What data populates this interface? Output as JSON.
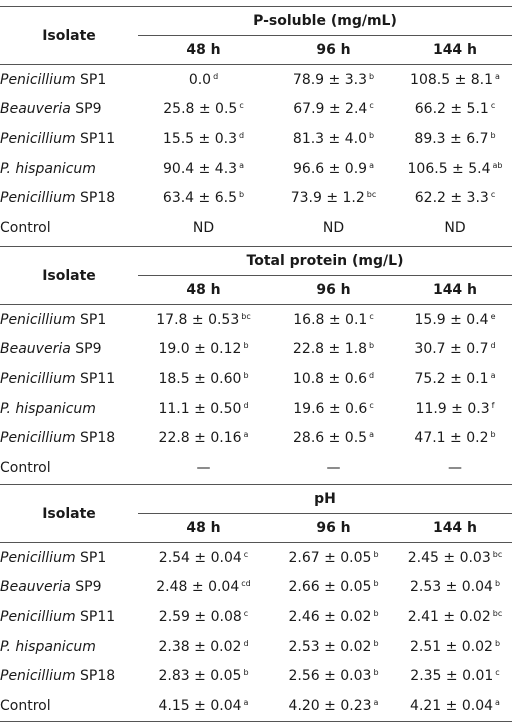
{
  "header_label": "Isolate",
  "time_points": [
    "48 h",
    "96 h",
    "144 h"
  ],
  "sections": [
    {
      "title": "P-soluble (mg/mL)",
      "rows": [
        {
          "genus": "Penicillium",
          "strain": " SP1",
          "cells": [
            {
              "v": "0.0",
              "s": "d"
            },
            {
              "v": "78.9 ± 3.3",
              "s": "b"
            },
            {
              "v": "108.5 ± 8.1",
              "s": "a"
            }
          ]
        },
        {
          "genus": "Beauveria",
          "strain": " SP9",
          "cells": [
            {
              "v": "25.8 ± 0.5",
              "s": "c"
            },
            {
              "v": "67.9 ± 2.4",
              "s": "c"
            },
            {
              "v": "66.2 ± 5.1",
              "s": "c"
            }
          ]
        },
        {
          "genus": "Penicillium",
          "strain": " SP11",
          "cells": [
            {
              "v": "15.5 ± 0.3",
              "s": "d"
            },
            {
              "v": "81.3 ± 4.0",
              "s": "b"
            },
            {
              "v": "89.3 ± 6.7",
              "s": "b"
            }
          ]
        },
        {
          "genus": "P. hispanicum",
          "strain": "",
          "cells": [
            {
              "v": "90.4 ± 4.3",
              "s": "a"
            },
            {
              "v": "96.6 ± 0.9",
              "s": "a"
            },
            {
              "v": "106.5 ± 5.4",
              "s": "ab"
            }
          ]
        },
        {
          "genus": "Penicillium",
          "strain": " SP18",
          "cells": [
            {
              "v": "63.4 ± 6.5",
              "s": "b"
            },
            {
              "v": "73.9 ± 1.2",
              "s": "bc"
            },
            {
              "v": "62.2 ± 3.3",
              "s": "c"
            }
          ]
        },
        {
          "genus": "",
          "strain": "Control",
          "cells": [
            {
              "v": "ND",
              "s": ""
            },
            {
              "v": "ND",
              "s": ""
            },
            {
              "v": "ND",
              "s": ""
            }
          ]
        }
      ]
    },
    {
      "title": "Total protein (mg/L)",
      "rows": [
        {
          "genus": "Penicillium",
          "strain": " SP1",
          "cells": [
            {
              "v": "17.8 ± 0.53",
              "s": "bc"
            },
            {
              "v": "16.8 ± 0.1",
              "s": "c"
            },
            {
              "v": "15.9 ± 0.4",
              "s": "e"
            }
          ]
        },
        {
          "genus": "Beauveria",
          "strain": " SP9",
          "cells": [
            {
              "v": "19.0 ± 0.12",
              "s": "b"
            },
            {
              "v": "22.8 ± 1.8",
              "s": "b"
            },
            {
              "v": "30.7 ± 0.7",
              "s": "d"
            }
          ]
        },
        {
          "genus": "Penicillium",
          "strain": " SP11",
          "cells": [
            {
              "v": "18.5 ± 0.60",
              "s": "b"
            },
            {
              "v": "10.8 ± 0.6",
              "s": "d"
            },
            {
              "v": "75.2 ± 0.1",
              "s": "a"
            }
          ]
        },
        {
          "genus": "P. hispanicum",
          "strain": "",
          "cells": [
            {
              "v": "11.1 ± 0.50",
              "s": "d"
            },
            {
              "v": "19.6 ± 0.6",
              "s": "c"
            },
            {
              "v": "11.9 ± 0.3",
              "s": "f"
            }
          ]
        },
        {
          "genus": "Penicillium",
          "strain": " SP18",
          "cells": [
            {
              "v": "22.8 ± 0.16",
              "s": "a"
            },
            {
              "v": "28.6 ± 0.5",
              "s": "a"
            },
            {
              "v": "47.1 ± 0.2",
              "s": "b"
            }
          ]
        },
        {
          "genus": "",
          "strain": "Control",
          "cells": [
            {
              "v": "—",
              "s": ""
            },
            {
              "v": "—",
              "s": ""
            },
            {
              "v": "—",
              "s": ""
            }
          ]
        }
      ]
    },
    {
      "title": "pH",
      "rows": [
        {
          "genus": "Penicillium",
          "strain": " SP1",
          "cells": [
            {
              "v": "2.54 ± 0.04",
              "s": "c"
            },
            {
              "v": "2.67 ± 0.05",
              "s": "b"
            },
            {
              "v": "2.45 ± 0.03",
              "s": "bc"
            }
          ]
        },
        {
          "genus": "Beauveria",
          "strain": " SP9",
          "cells": [
            {
              "v": "2.48 ± 0.04",
              "s": "cd"
            },
            {
              "v": "2.66 ± 0.05",
              "s": "b"
            },
            {
              "v": "2.53 ± 0.04",
              "s": "b"
            }
          ]
        },
        {
          "genus": "Penicillium",
          "strain": " SP11",
          "cells": [
            {
              "v": "2.59 ± 0.08",
              "s": "c"
            },
            {
              "v": "2.46 ± 0.02",
              "s": "b"
            },
            {
              "v": "2.41 ± 0.02",
              "s": "bc"
            }
          ]
        },
        {
          "genus": "P. hispanicum",
          "strain": "",
          "cells": [
            {
              "v": "2.38 ± 0.02",
              "s": "d"
            },
            {
              "v": "2.53 ± 0.02",
              "s": "b"
            },
            {
              "v": "2.51 ± 0.02",
              "s": "b"
            }
          ]
        },
        {
          "genus": "Penicillium",
          "strain": " SP18",
          "cells": [
            {
              "v": "2.83 ± 0.05",
              "s": "b"
            },
            {
              "v": "2.56 ± 0.03",
              "s": "b"
            },
            {
              "v": "2.35 ± 0.01",
              "s": "c"
            }
          ]
        },
        {
          "genus": "",
          "strain": "Control",
          "cells": [
            {
              "v": "4.15 ± 0.04",
              "s": "a"
            },
            {
              "v": "4.20 ± 0.23",
              "s": "a"
            },
            {
              "v": "4.21 ± 0.04",
              "s": "a"
            }
          ]
        }
      ]
    }
  ]
}
